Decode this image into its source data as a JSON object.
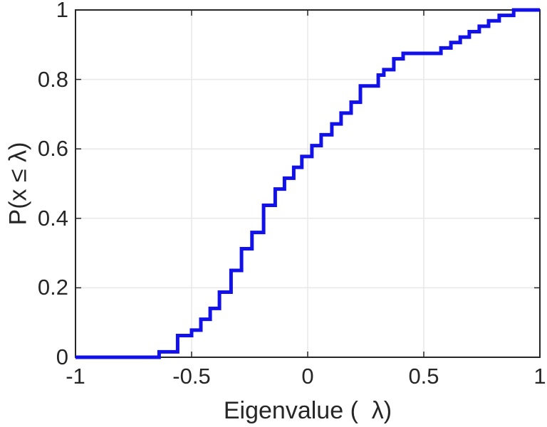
{
  "chart_data": {
    "type": "line",
    "subtype": "ecdf_stairs",
    "title": "",
    "xlabel": "Eigenvalue (  λ)",
    "ylabel": "P(x ≤ λ)",
    "xlim": [
      -1,
      1
    ],
    "ylim": [
      0,
      1
    ],
    "grid": true,
    "legend_position": "none",
    "x_ticks": [
      -1,
      -0.5,
      0,
      0.5,
      1
    ],
    "x_tick_labels": [
      "-1",
      "-0.5",
      "0",
      "0.5",
      "1"
    ],
    "y_ticks": [
      0,
      0.2,
      0.4,
      0.6,
      0.8,
      1
    ],
    "y_tick_labels": [
      "0",
      "0.2",
      "0.4",
      "0.6",
      "0.8",
      "1"
    ],
    "n_samples": 64,
    "steps": [
      {
        "x": -0.64,
        "p": 0.0156
      },
      {
        "x": -0.56,
        "p": 0.0625
      },
      {
        "x": -0.5,
        "p": 0.0781
      },
      {
        "x": -0.46,
        "p": 0.1094
      },
      {
        "x": -0.42,
        "p": 0.1406
      },
      {
        "x": -0.38,
        "p": 0.1875
      },
      {
        "x": -0.33,
        "p": 0.25
      },
      {
        "x": -0.285,
        "p": 0.3125
      },
      {
        "x": -0.24,
        "p": 0.3594
      },
      {
        "x": -0.19,
        "p": 0.4375
      },
      {
        "x": -0.14,
        "p": 0.4844
      },
      {
        "x": -0.1,
        "p": 0.5156
      },
      {
        "x": -0.06,
        "p": 0.5469
      },
      {
        "x": -0.025,
        "p": 0.5781
      },
      {
        "x": 0.018,
        "p": 0.6094
      },
      {
        "x": 0.058,
        "p": 0.6406
      },
      {
        "x": 0.104,
        "p": 0.6719
      },
      {
        "x": 0.144,
        "p": 0.7031
      },
      {
        "x": 0.187,
        "p": 0.7344
      },
      {
        "x": 0.227,
        "p": 0.7813
      },
      {
        "x": 0.304,
        "p": 0.8125
      },
      {
        "x": 0.328,
        "p": 0.8281
      },
      {
        "x": 0.371,
        "p": 0.8594
      },
      {
        "x": 0.411,
        "p": 0.875
      },
      {
        "x": 0.574,
        "p": 0.8906
      },
      {
        "x": 0.617,
        "p": 0.9063
      },
      {
        "x": 0.657,
        "p": 0.9219
      },
      {
        "x": 0.696,
        "p": 0.9375
      },
      {
        "x": 0.739,
        "p": 0.9531
      },
      {
        "x": 0.779,
        "p": 0.9688
      },
      {
        "x": 0.825,
        "p": 0.9844
      },
      {
        "x": 0.887,
        "p": 1.0
      }
    ],
    "colors": {
      "line": "#1111e8",
      "axis": "#262626",
      "grid": "#e8e8e8",
      "text": "#262626",
      "background": "#ffffff"
    },
    "line_width": 5
  },
  "layout_note": "empirical CDF step plot of eigenvalues"
}
